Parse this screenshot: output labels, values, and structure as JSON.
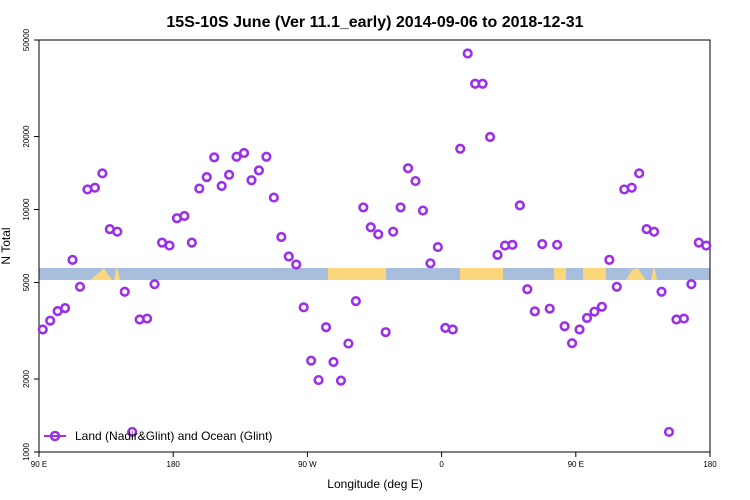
{
  "chart_data": {
    "type": "scatter",
    "title": "15S-10S June (Ver 11.1_early)   2014-09-06 to 2018-12-31",
    "xlabel": "Longitude (deg E)",
    "ylabel": "N Total",
    "y_scale": "log",
    "xlim": [
      90,
      450
    ],
    "ylim": [
      1000,
      50000
    ],
    "x_ticks": [
      {
        "value": 90,
        "label": "90 E"
      },
      {
        "value": 162,
        "label": "180"
      },
      {
        "value": 234,
        "label": "90 W"
      },
      {
        "value": 306,
        "label": "0"
      },
      {
        "value": 378,
        "label": "90 E"
      },
      {
        "value": 450,
        "label": "180"
      }
    ],
    "y_ticks": [
      {
        "value": 1000,
        "label": "1000"
      },
      {
        "value": 2000,
        "label": "2000"
      },
      {
        "value": 5000,
        "label": "5000"
      },
      {
        "value": 10000,
        "label": "10000"
      },
      {
        "value": 20000,
        "label": "20000"
      },
      {
        "value": 50000,
        "label": "50000"
      }
    ],
    "legend": {
      "label": "Land (Nadir&Glint) and Ocean (Glint)",
      "position": "bottom-left"
    },
    "colors": {
      "series": "#9b30e8",
      "ocean": "#a7bfdd",
      "land": "#fbd67a",
      "line": "#000000"
    },
    "series": [
      {
        "name": "Land (Nadir&Glint) and Ocean (Glint)",
        "x": [
          92,
          96,
          100,
          104,
          108,
          112,
          116,
          120,
          124,
          128,
          132,
          136,
          140,
          144,
          148,
          152,
          156,
          160,
          164,
          168,
          172,
          176,
          180,
          184,
          188,
          192,
          196,
          200,
          204,
          208,
          212,
          216,
          220,
          224,
          228,
          232,
          236,
          240,
          244,
          248,
          252,
          256,
          260,
          264,
          268,
          272,
          276,
          280,
          284,
          288,
          292,
          296,
          300,
          304,
          308,
          312,
          316,
          320,
          324,
          328,
          332,
          336,
          340,
          344,
          348,
          352,
          356,
          360,
          364,
          368,
          372,
          376,
          380,
          384,
          388,
          392,
          396,
          400,
          404,
          408,
          412,
          416,
          420,
          424,
          428,
          432,
          436,
          440,
          444,
          448
        ],
        "y": [
          3200,
          3480,
          3810,
          3920,
          6200,
          4800,
          12100,
          12300,
          14100,
          8300,
          8100,
          4580,
          1210,
          3520,
          3550,
          4920,
          7300,
          7100,
          9200,
          9400,
          7300,
          12200,
          13600,
          16400,
          12500,
          13900,
          16500,
          17100,
          13200,
          14500,
          16500,
          11200,
          7700,
          6400,
          5930,
          3950,
          2380,
          1980,
          3270,
          2350,
          1970,
          2800,
          4190,
          10200,
          8450,
          7900,
          3120,
          8100,
          10200,
          14800,
          13100,
          9900,
          6000,
          7000,
          3250,
          3200,
          17800,
          44000,
          33000,
          33000,
          19900,
          6500,
          7100,
          7150,
          10400,
          4690,
          3800,
          7200,
          3900,
          7150,
          3300,
          2810,
          3200,
          3570,
          3790,
          3970,
          6200,
          4800,
          12100,
          12300,
          14100,
          8300,
          8100,
          4580,
          1210,
          3520,
          3550,
          4920,
          7300,
          7100
        ]
      }
    ]
  }
}
